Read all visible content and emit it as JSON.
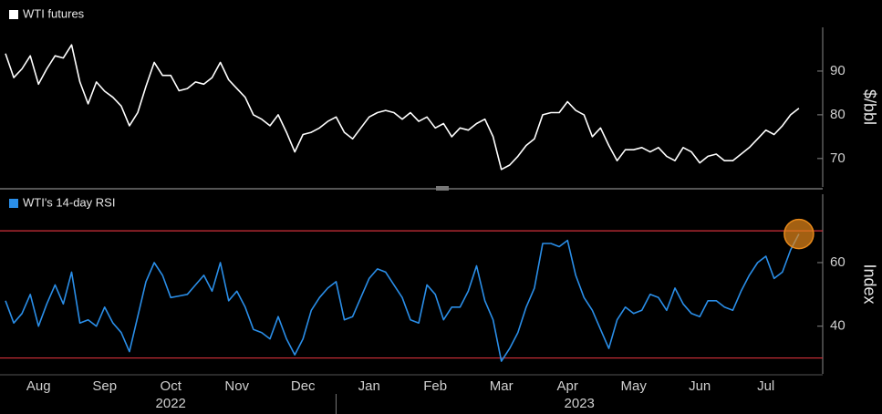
{
  "chart_data": [
    {
      "type": "line",
      "ylabel": "$/bbl",
      "x": [
        0,
        0.125,
        0.25,
        0.375,
        0.5,
        0.625,
        0.75,
        0.875,
        1,
        1.125,
        1.25,
        1.375,
        1.5,
        1.625,
        1.75,
        1.875,
        2,
        2.125,
        2.25,
        2.375,
        2.5,
        2.625,
        2.75,
        2.875,
        3,
        3.125,
        3.25,
        3.375,
        3.5,
        3.625,
        3.75,
        3.875,
        4,
        4.125,
        4.25,
        4.375,
        4.5,
        4.625,
        4.75,
        4.875,
        5,
        5.125,
        5.25,
        5.375,
        5.5,
        5.625,
        5.75,
        5.875,
        6,
        6.125,
        6.25,
        6.375,
        6.5,
        6.625,
        6.75,
        6.875,
        7,
        7.125,
        7.25,
        7.375,
        7.5,
        7.625,
        7.75,
        7.875,
        8,
        8.125,
        8.25,
        8.375,
        8.5,
        8.625,
        8.75,
        8.875,
        9,
        9.125,
        9.25,
        9.375,
        9.5,
        9.625,
        9.75,
        9.875,
        10,
        10.125,
        10.25,
        10.375,
        10.5,
        10.625,
        10.75,
        10.875,
        11,
        11.125,
        11.25,
        11.375,
        11.5,
        11.625,
        11.75,
        11.875,
        12
      ],
      "xlim": [
        0,
        12.36
      ],
      "ylim": [
        63.5,
        100
      ],
      "yticks": [
        70,
        80,
        90
      ],
      "series": [
        {
          "name": "WTI futures",
          "color": "#ffffff",
          "values": [
            94,
            88.5,
            90.5,
            93.5,
            87,
            90.5,
            93.5,
            93,
            96,
            87.5,
            82.5,
            87.5,
            85.4,
            84,
            82,
            77.5,
            80.5,
            86.5,
            92,
            89,
            89,
            85.5,
            86,
            87.5,
            87,
            88.5,
            92,
            88,
            86,
            84,
            80,
            79,
            77.5,
            80,
            76,
            71.5,
            75.5,
            76,
            77,
            78.5,
            79.5,
            76,
            74.5,
            77,
            79.5,
            80.5,
            81,
            80.5,
            79,
            80.5,
            78.5,
            79.5,
            77,
            78,
            75,
            77,
            76.5,
            78,
            79,
            75,
            67.5,
            68.5,
            70.5,
            73,
            74.5,
            80,
            80.5,
            80.5,
            83,
            81,
            80,
            75,
            77,
            73,
            69.5,
            72,
            72,
            72.5,
            71.5,
            72.5,
            70.5,
            69.5,
            72.5,
            71.5,
            69,
            70.5,
            71,
            69.5,
            69.5,
            71,
            72.5,
            74.5,
            76.5,
            75.5,
            77.5,
            80,
            81.5
          ]
        }
      ]
    },
    {
      "type": "line",
      "ylabel": "Index",
      "x": [
        0,
        0.125,
        0.25,
        0.375,
        0.5,
        0.625,
        0.75,
        0.875,
        1,
        1.125,
        1.25,
        1.375,
        1.5,
        1.625,
        1.75,
        1.875,
        2,
        2.125,
        2.25,
        2.375,
        2.5,
        2.625,
        2.75,
        2.875,
        3,
        3.125,
        3.25,
        3.375,
        3.5,
        3.625,
        3.75,
        3.875,
        4,
        4.125,
        4.25,
        4.375,
        4.5,
        4.625,
        4.75,
        4.875,
        5,
        5.125,
        5.25,
        5.375,
        5.5,
        5.625,
        5.75,
        5.875,
        6,
        6.125,
        6.25,
        6.375,
        6.5,
        6.625,
        6.75,
        6.875,
        7,
        7.125,
        7.25,
        7.375,
        7.5,
        7.625,
        7.75,
        7.875,
        8,
        8.125,
        8.25,
        8.375,
        8.5,
        8.625,
        8.75,
        8.875,
        9,
        9.125,
        9.25,
        9.375,
        9.5,
        9.625,
        9.75,
        9.875,
        10,
        10.125,
        10.25,
        10.375,
        10.5,
        10.625,
        10.75,
        10.875,
        11,
        11.125,
        11.25,
        11.375,
        11.5,
        11.625,
        11.75,
        11.875,
        12
      ],
      "xlim": [
        0,
        12.36
      ],
      "xticks": [
        {
          "value": 0.5,
          "label": "Aug"
        },
        {
          "value": 1.5,
          "label": "Sep"
        },
        {
          "value": 2.5,
          "label": "Oct"
        },
        {
          "value": 3.5,
          "label": "Nov"
        },
        {
          "value": 4.5,
          "label": "Dec"
        },
        {
          "value": 5.5,
          "label": "Jan"
        },
        {
          "value": 6.5,
          "label": "Feb"
        },
        {
          "value": 7.5,
          "label": "Mar"
        },
        {
          "value": 8.5,
          "label": "Apr"
        },
        {
          "value": 9.5,
          "label": "May"
        },
        {
          "value": 10.5,
          "label": "Jun"
        },
        {
          "value": 11.5,
          "label": "Jul"
        }
      ],
      "year_ticks": [
        {
          "value": 2.5,
          "label": "2022"
        },
        {
          "value": 8.68,
          "label": "2023"
        }
      ],
      "year_divider": 5,
      "ylim": [
        25,
        81.5
      ],
      "yticks": [
        40,
        60
      ],
      "hlines": [
        70,
        30
      ],
      "hline_color": "#d3303a",
      "highlight_color": "#e8891a",
      "series": [
        {
          "name": "WTI's 14-day RSI",
          "color": "#2a8ee8",
          "values": [
            48,
            41,
            44,
            50,
            40,
            47,
            53,
            47,
            57,
            41,
            42,
            40,
            46,
            41,
            38,
            32,
            43,
            54,
            60,
            56,
            49,
            49.5,
            50,
            53,
            56,
            51,
            60,
            48,
            51,
            46,
            39,
            38,
            36,
            43,
            36,
            31,
            36,
            45,
            49,
            52,
            54,
            42,
            43,
            49,
            55,
            58,
            57,
            53,
            49,
            42,
            41,
            53,
            50,
            42,
            46,
            46,
            51,
            59,
            48,
            42,
            29,
            33,
            38,
            46,
            52,
            66,
            66,
            65,
            67,
            56,
            49,
            45,
            39,
            33,
            42,
            46,
            44,
            45,
            50,
            49,
            45,
            52,
            47,
            44,
            43,
            48,
            48,
            46,
            45,
            51,
            56,
            60,
            62,
            55,
            57,
            64,
            69
          ]
        }
      ]
    }
  ]
}
